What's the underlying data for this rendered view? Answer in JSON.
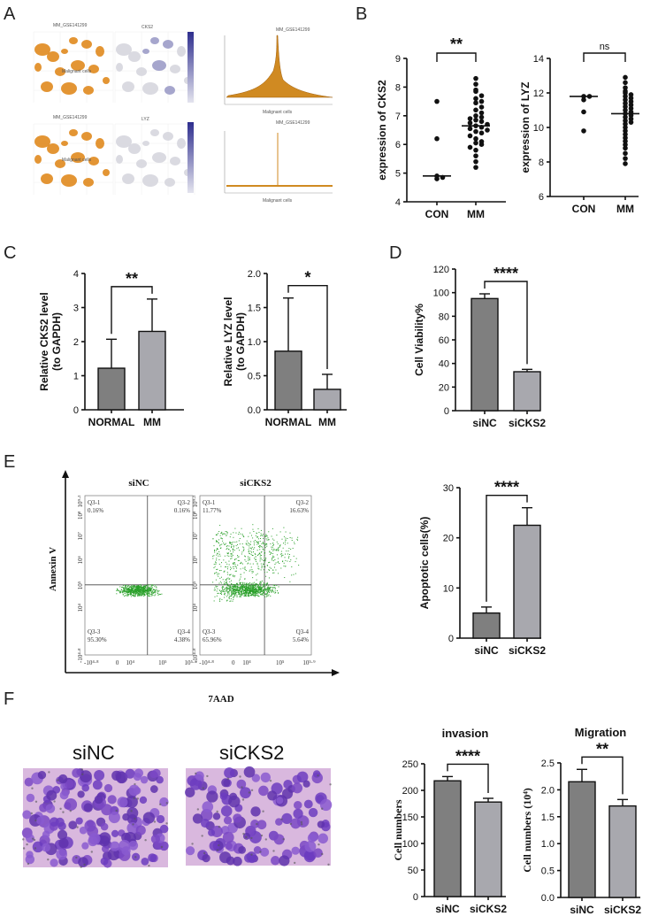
{
  "panels": {
    "A": "A",
    "B": "B",
    "C": "C",
    "D": "D",
    "E": "E",
    "F": "F"
  },
  "panelA": {
    "row1": {
      "umap1_title": "MM_GSE141299",
      "umap2_title": "CKS2",
      "violin_title": "MM_GSE141299",
      "celltype_label": "Malignant cells",
      "violin_xlabel": "Malignant cells"
    },
    "row2": {
      "umap1_title": "MM_GSE141299",
      "umap2_title": "LYZ",
      "violin_title": "MM_GSE141299",
      "celltype_label": "Malignant cells",
      "violin_xlabel": "Malignant cells"
    },
    "colors": {
      "cluster": "#e08a1e",
      "feature_low": "#d6d6de",
      "feature_high": "#3a3a9a"
    }
  },
  "chart_data": [
    {
      "id": "B1",
      "type": "scatter",
      "ylabel": "expression of CKS2",
      "categories": [
        "CON",
        "MM"
      ],
      "ylim": [
        4,
        9
      ],
      "yticks": [
        4,
        5,
        6,
        7,
        8,
        9
      ],
      "significance": "**",
      "series": [
        {
          "values": [
            7.5,
            6.2,
            4.9,
            4.8,
            4.85
          ]
        },
        {
          "values": [
            8.3,
            8.1,
            7.9,
            7.85,
            7.7,
            7.6,
            7.5,
            7.45,
            7.3,
            7.2,
            7.1,
            7.0,
            6.95,
            6.9,
            6.85,
            6.8,
            6.75,
            6.7,
            6.65,
            6.6,
            6.55,
            6.5,
            6.45,
            6.4,
            6.3,
            6.2,
            6.1,
            6.05,
            6.0,
            5.9,
            5.8,
            5.6,
            5.4,
            5.2
          ]
        }
      ],
      "medians": [
        4.9,
        6.65
      ]
    },
    {
      "id": "B2",
      "type": "scatter",
      "ylabel": "expression of LYZ",
      "categories": [
        "CON",
        "MM"
      ],
      "ylim": [
        6,
        14
      ],
      "yticks": [
        6,
        8,
        10,
        12,
        14
      ],
      "significance": "ns",
      "series": [
        {
          "values": [
            11.8,
            11.8,
            11.6,
            10.9,
            9.8
          ]
        },
        {
          "values": [
            12.9,
            12.6,
            12.3,
            12.1,
            12.0,
            11.9,
            11.8,
            11.7,
            11.6,
            11.5,
            11.4,
            11.3,
            11.2,
            11.1,
            11.0,
            10.9,
            10.8,
            10.7,
            10.6,
            10.5,
            10.4,
            10.3,
            10.2,
            10.0,
            9.8,
            9.6,
            9.4,
            9.2,
            9.0,
            8.8,
            8.5,
            8.2,
            7.9
          ]
        }
      ],
      "medians": [
        11.8,
        10.8
      ]
    },
    {
      "id": "C1",
      "type": "bar",
      "ylabel": "Relative CKS2 level (to GAPDH)",
      "ylabel_lines": [
        "Relative CKS2 level",
        "(to GAPDH)"
      ],
      "categories": [
        "NORMAL",
        "MM"
      ],
      "values": [
        1.22,
        2.3
      ],
      "errors": [
        0.85,
        0.95
      ],
      "ylim": [
        0,
        4
      ],
      "yticks": [
        "0",
        "1",
        "2",
        "3",
        "4"
      ],
      "significance": "**"
    },
    {
      "id": "C2",
      "type": "bar",
      "ylabel": "Relative LYZ level (to GAPDH)",
      "ylabel_lines": [
        "Relative LYZ level",
        "(to GAPDH)"
      ],
      "categories": [
        "NORMAL",
        "MM"
      ],
      "values": [
        0.86,
        0.3
      ],
      "errors": [
        0.78,
        0.22
      ],
      "ylim": [
        0,
        2
      ],
      "yticks": [
        "0.0",
        "0.5",
        "1.0",
        "1.5",
        "2.0"
      ],
      "significance": "*"
    },
    {
      "id": "D",
      "type": "bar",
      "ylabel": "Cell Viability%",
      "categories": [
        "siNC",
        "siCKS2"
      ],
      "values": [
        95,
        33
      ],
      "errors": [
        4,
        2
      ],
      "ylim": [
        0,
        120
      ],
      "yticks": [
        "0",
        "20",
        "40",
        "60",
        "80",
        "100",
        "120"
      ],
      "significance": "****"
    },
    {
      "id": "E2",
      "type": "bar",
      "ylabel": "Apoptotic cells(%)",
      "categories": [
        "siNC",
        "siCKS2"
      ],
      "values": [
        5,
        22.5
      ],
      "errors": [
        1.2,
        3.5
      ],
      "ylim": [
        0,
        30
      ],
      "yticks": [
        "0",
        "10",
        "20",
        "30"
      ],
      "significance": "****"
    },
    {
      "id": "F1",
      "type": "bar",
      "title": "invasion",
      "ylabel": "Cell numbers",
      "categories": [
        "siNC",
        "siCKS2"
      ],
      "values": [
        218,
        178
      ],
      "errors": [
        8,
        7
      ],
      "ylim": [
        0,
        250
      ],
      "yticks": [
        "0",
        "50",
        "100",
        "150",
        "200",
        "250"
      ],
      "significance": "****"
    },
    {
      "id": "F2",
      "type": "bar",
      "title": "Migration",
      "ylabel": "Cell numbers (10⁴)",
      "categories": [
        "siNC",
        "siCKS2"
      ],
      "values": [
        2.15,
        1.7
      ],
      "errors": [
        0.23,
        0.12
      ],
      "ylim": [
        0,
        2.5
      ],
      "yticks": [
        "0.0",
        "0.5",
        "1.0",
        "1.5",
        "2.0",
        "2.5"
      ],
      "significance": "**"
    }
  ],
  "flow": {
    "xlabel": "7AAD",
    "ylabel": "Annexin V",
    "xticks": [
      "-10⁴·⁸",
      "0",
      "10⁴",
      "10⁵",
      "10⁵·⁹"
    ],
    "yticks": [
      "-10⁴·⁸",
      "10⁴",
      "10⁵",
      "10⁶",
      "10⁷",
      "10⁸",
      "10⁹·³"
    ],
    "plots": [
      {
        "title": "siNC",
        "q1": "Q3-1",
        "q1v": "0.16%",
        "q2": "Q3-2",
        "q2v": "0.16%",
        "q3": "Q3-3",
        "q3v": "95.30%",
        "q4": "Q3-4",
        "q4v": "4.38%"
      },
      {
        "title": "siCKS2",
        "q1": "Q3-1",
        "q1v": "11.77%",
        "q2": "Q3-2",
        "q2v": "16.63%",
        "q3": "Q3-3",
        "q3v": "65.96%",
        "q4": "Q3-4",
        "q4v": "5.64%"
      }
    ],
    "dot_color": "#2aa02a"
  },
  "transwell": {
    "left_label": "siNC",
    "right_label": "siCKS2"
  },
  "colors": {
    "bar_dark": "#7f7f7f",
    "bar_light": "#a8a8ae",
    "stain_bg": "#d9b8de",
    "cell": "#7a48c4"
  }
}
